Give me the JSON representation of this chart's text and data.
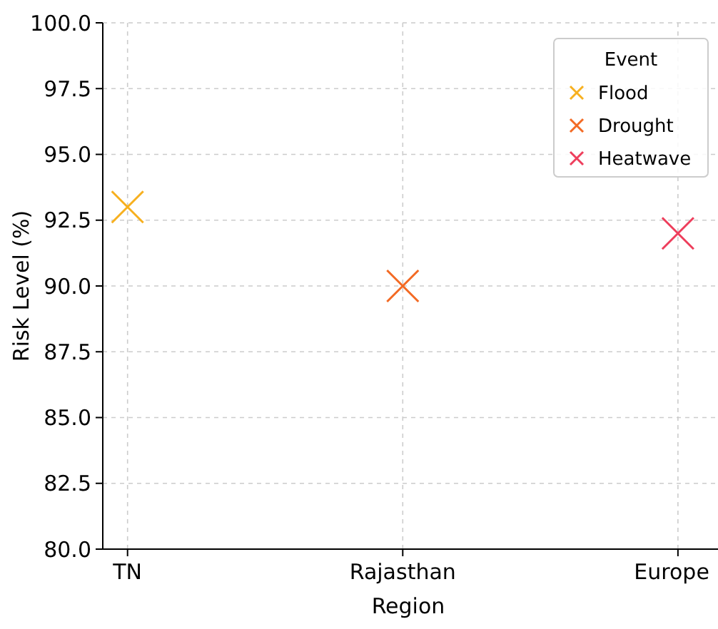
{
  "chart_data": {
    "type": "scatter",
    "xlabel": "Region",
    "ylabel": "Risk Level (%)",
    "legend_title": "Event",
    "categories": [
      "TN",
      "Rajasthan",
      "Europe"
    ],
    "series": [
      {
        "name": "Flood",
        "color": "#f7b01f",
        "x": [
          "TN"
        ],
        "values": [
          93
        ]
      },
      {
        "name": "Drought",
        "color": "#f36a24",
        "x": [
          "Rajasthan"
        ],
        "values": [
          90
        ]
      },
      {
        "name": "Heatwave",
        "color": "#ee3e5c",
        "x": [
          "Europe"
        ],
        "values": [
          92
        ]
      }
    ],
    "ylim": [
      80,
      100
    ],
    "yticks": [
      {
        "value": 80,
        "label": "80.0"
      },
      {
        "value": 82.5,
        "label": "82.5"
      },
      {
        "value": 85,
        "label": "85.0"
      },
      {
        "value": 87.5,
        "label": "87.5"
      },
      {
        "value": 90,
        "label": "90.0"
      },
      {
        "value": 92.5,
        "label": "92.5"
      },
      {
        "value": 95,
        "label": "95.0"
      },
      {
        "value": 97.5,
        "label": "97.5"
      },
      {
        "value": 100,
        "label": "100.0"
      }
    ],
    "grid": true,
    "legend": "top right",
    "marker": "cross"
  }
}
